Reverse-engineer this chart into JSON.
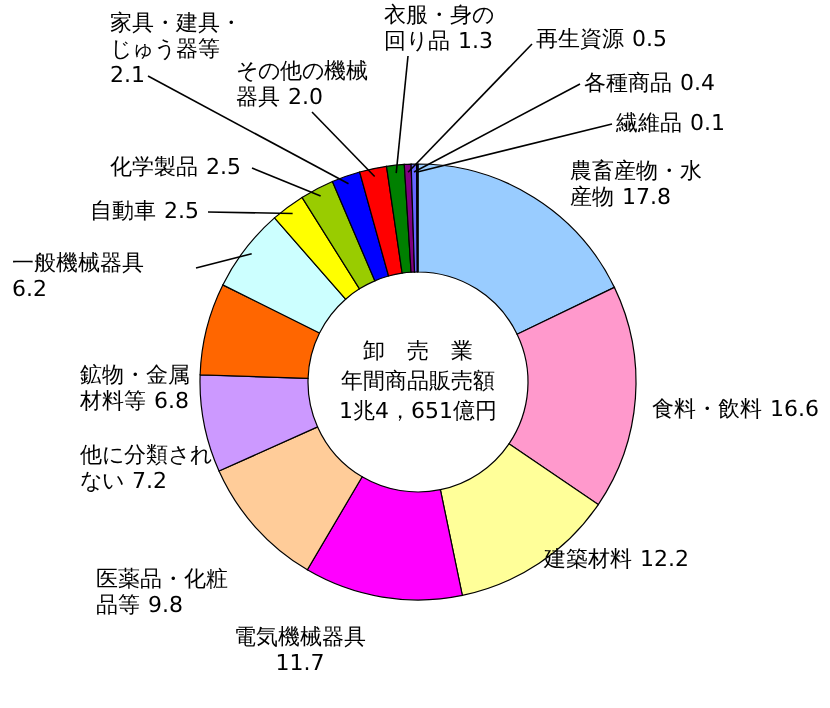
{
  "chart_data": {
    "type": "donut",
    "categories": [
      "農畜産物・水産物",
      "食料・飲料",
      "建築材料",
      "電気機械器具",
      "医薬品・化粧品等",
      "他に分類されない",
      "鉱物・金属材料等",
      "一般機械器具",
      "自動車",
      "化学製品",
      "家具・建具・じゅう器等",
      "その他の機械器具",
      "衣服・身の回り品",
      "再生資源",
      "各種商品",
      "繊維品"
    ],
    "values": [
      17.8,
      16.6,
      12.2,
      11.7,
      9.8,
      7.2,
      6.8,
      6.2,
      2.5,
      2.5,
      2.1,
      2.0,
      1.3,
      0.5,
      0.4,
      0.1
    ],
    "colors": [
      "#99ccff",
      "#ff99cc",
      "#ffff99",
      "#ff00ff",
      "#ffcc99",
      "#cc99ff",
      "#ff6600",
      "#ccffff",
      "#ffff00",
      "#99cc00",
      "#0000ff",
      "#ff0000",
      "#008000",
      "#800080",
      "#6666ff",
      "#000080"
    ],
    "value_labels": [
      "17.8",
      "16.6",
      "12.2",
      "11.7",
      "9.8",
      "7.2",
      "6.8",
      "6.2",
      "2.5",
      "2.5",
      "2.1",
      "2.0",
      "1.3",
      "0.5",
      "0.4",
      "0.1"
    ],
    "annotations": [
      "卸　売　業",
      "年間商品販売額",
      "1兆4，651億円"
    ]
  }
}
